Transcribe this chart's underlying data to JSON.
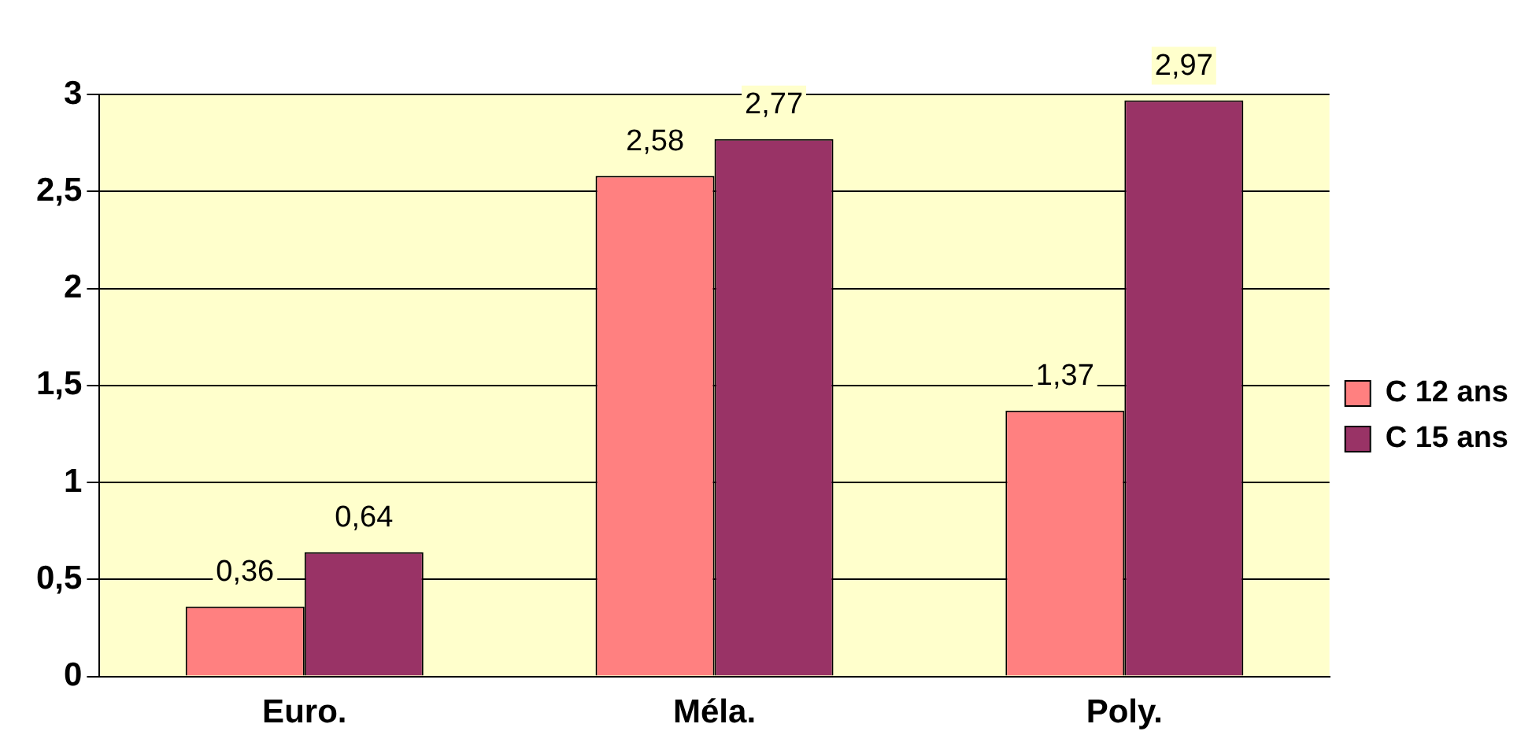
{
  "chart_data": {
    "type": "bar",
    "categories": [
      "Euro.",
      "Méla.",
      "Poly."
    ],
    "series": [
      {
        "name": "C 12 ans",
        "color": "#ff8080",
        "values": [
          0.36,
          2.58,
          1.37
        ],
        "value_labels": [
          "0,36",
          "2,58",
          "1,37"
        ]
      },
      {
        "name": "C 15 ans",
        "color": "#993366",
        "values": [
          0.64,
          2.77,
          2.97
        ],
        "value_labels": [
          "0,64",
          "2,77",
          "2,97"
        ]
      }
    ],
    "ylim": [
      0,
      3
    ],
    "yticks": [
      0,
      {
        "value": 0.5,
        "label": "0,5"
      },
      1,
      {
        "value": 1.5,
        "label": "1,5"
      },
      2,
      {
        "value": 2.5,
        "label": "2,5"
      },
      3
    ],
    "grid": "y",
    "legend": "right"
  }
}
